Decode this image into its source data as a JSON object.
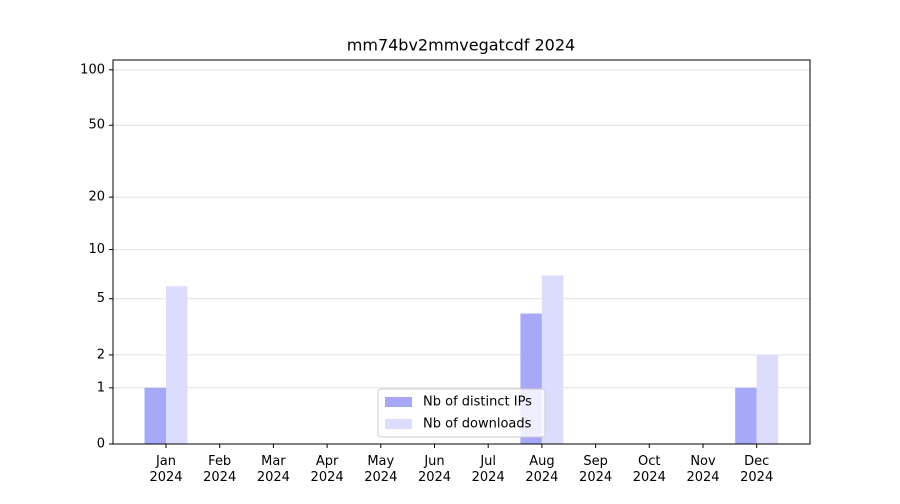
{
  "chart_data": {
    "type": "bar",
    "title": "mm74bv2mmvegatcdf 2024",
    "categories": [
      "Jan\n2024",
      "Feb\n2024",
      "Mar\n2024",
      "Apr\n2024",
      "May\n2024",
      "Jun\n2024",
      "Jul\n2024",
      "Aug\n2024",
      "Sep\n2024",
      "Oct\n2024",
      "Nov\n2024",
      "Dec\n2024"
    ],
    "series": [
      {
        "name": "Nb of distinct IPs",
        "color": "#a8a8f8",
        "values": [
          1,
          0,
          0,
          0,
          0,
          0,
          0,
          4,
          0,
          0,
          0,
          1
        ]
      },
      {
        "name": "Nb of downloads",
        "color": "#dcdcfc",
        "values": [
          6,
          0,
          0,
          0,
          0,
          0,
          0,
          7,
          0,
          0,
          0,
          2
        ]
      }
    ],
    "yscale": "log1p",
    "ylim": [
      0,
      113
    ],
    "yticks": [
      0,
      1,
      2,
      5,
      10,
      20,
      50,
      100
    ],
    "grid": true,
    "legend": "lower center"
  }
}
